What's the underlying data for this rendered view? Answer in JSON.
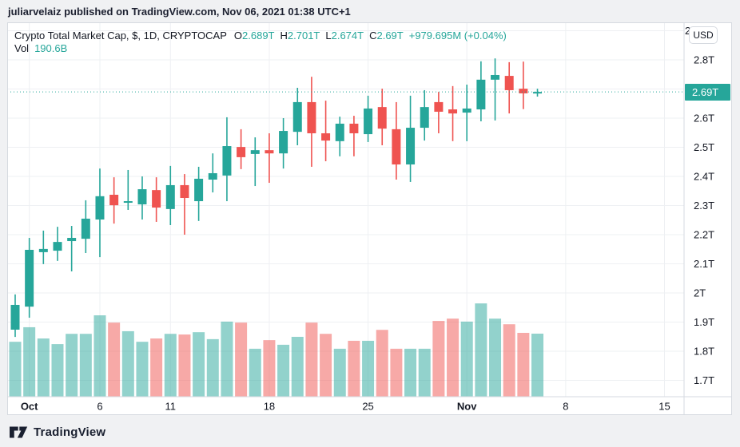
{
  "header": {
    "text": "juliarvelaiz published on TradingView.com, Nov 06, 2021 01:38 UTC+1"
  },
  "legend": {
    "title": "Crypto Total Market Cap, $, 1D, CRYPTOCAP",
    "ohlc": [
      {
        "k": "O",
        "v": "2.689T"
      },
      {
        "k": "H",
        "v": "2.701T"
      },
      {
        "k": "L",
        "v": "2.674T"
      },
      {
        "k": "C",
        "v": "2.69T"
      }
    ],
    "change": "+979.695M (+0.04%)",
    "vol_label": "Vol",
    "vol_value": "190.6B"
  },
  "price_scale": {
    "currency_button": "USD"
  },
  "footer": {
    "brand": "TradingView"
  },
  "colors": {
    "up": "#26a69a",
    "down": "#ef5350",
    "volume_up": "rgba(38,166,154,0.5)",
    "volume_down": "rgba(239,83,80,0.5)",
    "accent": "#26a69a",
    "text": "#131722",
    "grid": "#eef0f3",
    "separator": "#d6dae0",
    "price_line": "#26a69a"
  },
  "chart_data": {
    "type": "candlestick",
    "title": "Crypto Total Market Cap, $, 1D, CRYPTOCAP",
    "units": "trillions USD",
    "volume_units": "billions USD",
    "ylabel": "",
    "xlabel": "",
    "ylim": [
      1.65,
      2.92
    ],
    "grid": true,
    "last_price": {
      "label": "2.69T",
      "value": 2.69
    },
    "y_ticks": [
      {
        "label": "2.9T",
        "value": 2.9
      },
      {
        "label": "2.8T",
        "value": 2.8
      },
      {
        "label": "2.7T",
        "value": 2.7
      },
      {
        "label": "2.6T",
        "value": 2.6
      },
      {
        "label": "2.5T",
        "value": 2.5
      },
      {
        "label": "2.4T",
        "value": 2.4
      },
      {
        "label": "2.3T",
        "value": 2.3
      },
      {
        "label": "2.2T",
        "value": 2.2
      },
      {
        "label": "2.1T",
        "value": 2.1
      },
      {
        "label": "2T",
        "value": 2.0
      },
      {
        "label": "1.9T",
        "value": 1.9
      },
      {
        "label": "1.8T",
        "value": 1.8
      },
      {
        "label": "1.7T",
        "value": 1.7
      }
    ],
    "x_ticks": [
      {
        "label": "Oct",
        "index": 1,
        "month": true
      },
      {
        "label": "6",
        "index": 6
      },
      {
        "label": "11",
        "index": 11
      },
      {
        "label": "18",
        "index": 18
      },
      {
        "label": "25",
        "index": 25
      },
      {
        "label": "Nov",
        "index": 32,
        "month": true
      },
      {
        "label": "8",
        "index": 39
      },
      {
        "label": "15",
        "index": 46
      }
    ],
    "candles": [
      {
        "date": "Sep 30",
        "o": 1.874,
        "h": 1.995,
        "l": 1.849,
        "c": 1.959,
        "vol": 166
      },
      {
        "date": "Oct 1",
        "o": 1.953,
        "h": 2.189,
        "l": 1.915,
        "c": 2.148,
        "vol": 210
      },
      {
        "date": "Oct 2",
        "o": 2.14,
        "h": 2.214,
        "l": 2.099,
        "c": 2.151,
        "vol": 176
      },
      {
        "date": "Oct 3",
        "o": 2.145,
        "h": 2.227,
        "l": 2.11,
        "c": 2.175,
        "vol": 159
      },
      {
        "date": "Oct 4",
        "o": 2.178,
        "h": 2.23,
        "l": 2.074,
        "c": 2.189,
        "vol": 190
      },
      {
        "date": "Oct 5",
        "o": 2.186,
        "h": 2.318,
        "l": 2.137,
        "c": 2.255,
        "vol": 190
      },
      {
        "date": "Oct 6",
        "o": 2.252,
        "h": 2.427,
        "l": 2.123,
        "c": 2.332,
        "vol": 246
      },
      {
        "date": "Oct 7",
        "o": 2.337,
        "h": 2.397,
        "l": 2.238,
        "c": 2.301,
        "vol": 224
      },
      {
        "date": "Oct 8",
        "o": 2.31,
        "h": 2.422,
        "l": 2.285,
        "c": 2.315,
        "vol": 198
      },
      {
        "date": "Oct 9",
        "o": 2.304,
        "h": 2.4,
        "l": 2.252,
        "c": 2.356,
        "vol": 166
      },
      {
        "date": "Oct 10",
        "o": 2.353,
        "h": 2.397,
        "l": 2.244,
        "c": 2.293,
        "vol": 176
      },
      {
        "date": "Oct 11",
        "o": 2.288,
        "h": 2.436,
        "l": 2.233,
        "c": 2.37,
        "vol": 190
      },
      {
        "date": "Oct 12",
        "o": 2.37,
        "h": 2.408,
        "l": 2.2,
        "c": 2.326,
        "vol": 188
      },
      {
        "date": "Oct 13",
        "o": 2.315,
        "h": 2.433,
        "l": 2.247,
        "c": 2.392,
        "vol": 195
      },
      {
        "date": "Oct 14",
        "o": 2.389,
        "h": 2.479,
        "l": 2.345,
        "c": 2.411,
        "vol": 174
      },
      {
        "date": "Oct 15",
        "o": 2.403,
        "h": 2.603,
        "l": 2.315,
        "c": 2.504,
        "vol": 227
      },
      {
        "date": "Oct 16",
        "o": 2.501,
        "h": 2.562,
        "l": 2.425,
        "c": 2.466,
        "vol": 224
      },
      {
        "date": "Oct 17",
        "o": 2.477,
        "h": 2.534,
        "l": 2.367,
        "c": 2.49,
        "vol": 145
      },
      {
        "date": "Oct 18",
        "o": 2.49,
        "h": 2.548,
        "l": 2.378,
        "c": 2.479,
        "vol": 171
      },
      {
        "date": "Oct 19",
        "o": 2.479,
        "h": 2.6,
        "l": 2.427,
        "c": 2.556,
        "vol": 157
      },
      {
        "date": "Oct 20",
        "o": 2.553,
        "h": 2.704,
        "l": 2.507,
        "c": 2.655,
        "vol": 181
      },
      {
        "date": "Oct 21",
        "o": 2.655,
        "h": 2.742,
        "l": 2.433,
        "c": 2.548,
        "vol": 224
      },
      {
        "date": "Oct 22",
        "o": 2.548,
        "h": 2.66,
        "l": 2.452,
        "c": 2.523,
        "vol": 190
      },
      {
        "date": "Oct 23",
        "o": 2.521,
        "h": 2.605,
        "l": 2.469,
        "c": 2.581,
        "vol": 145
      },
      {
        "date": "Oct 24",
        "o": 2.581,
        "h": 2.608,
        "l": 2.469,
        "c": 2.548,
        "vol": 169
      },
      {
        "date": "Oct 25",
        "o": 2.545,
        "h": 2.677,
        "l": 2.518,
        "c": 2.633,
        "vol": 169
      },
      {
        "date": "Oct 26",
        "o": 2.638,
        "h": 2.701,
        "l": 2.507,
        "c": 2.564,
        "vol": 202
      },
      {
        "date": "Oct 27",
        "o": 2.562,
        "h": 2.655,
        "l": 2.389,
        "c": 2.441,
        "vol": 145
      },
      {
        "date": "Oct 28",
        "o": 2.441,
        "h": 2.677,
        "l": 2.381,
        "c": 2.567,
        "vol": 145
      },
      {
        "date": "Oct 29",
        "o": 2.567,
        "h": 2.696,
        "l": 2.523,
        "c": 2.638,
        "vol": 145
      },
      {
        "date": "Oct 30",
        "o": 2.655,
        "h": 2.69,
        "l": 2.548,
        "c": 2.622,
        "vol": 229
      },
      {
        "date": "Oct 31",
        "o": 2.63,
        "h": 2.71,
        "l": 2.521,
        "c": 2.616,
        "vol": 236
      },
      {
        "date": "Nov 1",
        "o": 2.619,
        "h": 2.715,
        "l": 2.521,
        "c": 2.633,
        "vol": 227
      },
      {
        "date": "Nov 2",
        "o": 2.63,
        "h": 2.795,
        "l": 2.589,
        "c": 2.732,
        "vol": 282
      },
      {
        "date": "Nov 3",
        "o": 2.732,
        "h": 2.805,
        "l": 2.592,
        "c": 2.748,
        "vol": 236
      },
      {
        "date": "Nov 4",
        "o": 2.745,
        "h": 2.792,
        "l": 2.616,
        "c": 2.696,
        "vol": 219
      },
      {
        "date": "Nov 5",
        "o": 2.701,
        "h": 2.794,
        "l": 2.631,
        "c": 2.685,
        "vol": 193
      },
      {
        "date": "Nov 6",
        "o": 2.689,
        "h": 2.701,
        "l": 2.674,
        "c": 2.69,
        "vol": 190.6
      }
    ]
  }
}
